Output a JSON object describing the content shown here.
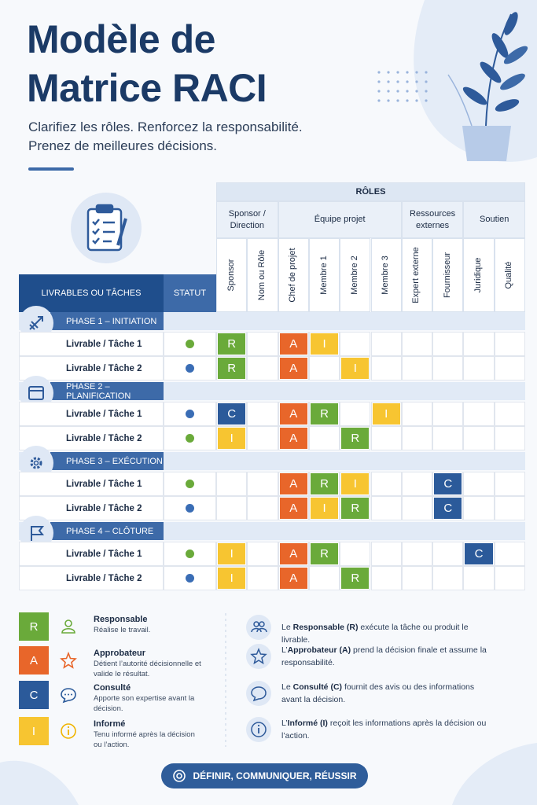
{
  "header": {
    "title_lines": [
      "Modèle de",
      "Matrice RACI"
    ],
    "subtitle_lines": [
      "Clarifiez les rôles. Renforcez la responsabilité.",
      "Prenez de meilleures décisions."
    ]
  },
  "matrix": {
    "roles_title": "RÔLES",
    "task_header": "LIVRABLES OU TÂCHES",
    "status_header": "STATUT",
    "groups": [
      {
        "label": "Sponsor / Direction",
        "roles": [
          "Sponsor",
          "Nom ou Rôle"
        ]
      },
      {
        "label": "Équipe projet",
        "roles": [
          "Chef de projet",
          "Membre 1",
          "Membre 2",
          "Membre 3"
        ]
      },
      {
        "label": "Ressources externes",
        "roles": [
          "Expert externe",
          "Fournisseur"
        ]
      },
      {
        "label": "Soutien",
        "roles": [
          "Juridique",
          "Qualité"
        ]
      }
    ],
    "phases": [
      {
        "label": "PHASE 1 – INITIATION",
        "tasks": [
          {
            "label": "Livrable / Tâche 1",
            "status_color": "#6aaa3a",
            "cells": [
              "R",
              null,
              "A",
              "I",
              null,
              null,
              null,
              null,
              null,
              null
            ]
          },
          {
            "label": "Livrable / Tâche 2",
            "status_color": "#3a6db5",
            "cells": [
              "R",
              null,
              "A",
              null,
              "I",
              null,
              null,
              null,
              null,
              null
            ]
          }
        ]
      },
      {
        "label": "PHASE 2 – PLANIFICATION",
        "tasks": [
          {
            "label": "Livrable / Tâche 1",
            "status_color": "#3a6db5",
            "cells": [
              "C",
              null,
              "A",
              "R",
              null,
              "I",
              null,
              null,
              null,
              null
            ]
          },
          {
            "label": "Livrable / Tâche 2",
            "status_color": "#6aaa3a",
            "cells": [
              "I",
              null,
              "A",
              null,
              "R",
              null,
              null,
              null,
              null,
              null
            ]
          }
        ]
      },
      {
        "label": "PHASE 3 – EXÉCUTION",
        "tasks": [
          {
            "label": "Livrable / Tâche 1",
            "status_color": "#6aaa3a",
            "cells": [
              null,
              null,
              "A",
              "R",
              "I",
              null,
              null,
              "C",
              null,
              null
            ]
          },
          {
            "label": "Livrable / Tâche 2",
            "status_color": "#3a6db5",
            "cells": [
              null,
              null,
              "A",
              "I",
              "R",
              null,
              null,
              "C",
              null,
              null
            ]
          }
        ]
      },
      {
        "label": "PHASE 4 – CLÔTURE",
        "tasks": [
          {
            "label": "Livrable / Tâche 1",
            "status_color": "#6aaa3a",
            "cells": [
              "I",
              null,
              "A",
              "R",
              null,
              null,
              null,
              null,
              "C",
              null
            ]
          },
          {
            "label": "Livrable / Tâche 2",
            "status_color": "#3a6db5",
            "cells": [
              "I",
              null,
              "A",
              null,
              "R",
              null,
              null,
              null,
              null,
              null
            ]
          }
        ]
      }
    ]
  },
  "legend": [
    {
      "letter": "R",
      "name": "Responsable",
      "description": "Réalise le travail."
    },
    {
      "letter": "A",
      "name": "Approbateur",
      "description": "Détient l’autorité décisionnelle et valide le résultat."
    },
    {
      "letter": "C",
      "name": "Consulté",
      "description": "Apporte son expertise avant la décision."
    },
    {
      "letter": "I",
      "name": "Informé",
      "description": "Tenu informé après la décision ou l’action."
    }
  ],
  "notes": [
    {
      "before": "Le ",
      "bold": "Responsable (R)",
      "after": " exécute la tâche ou produit le livrable."
    },
    {
      "before": "L’",
      "bold": "Approbateur (A)",
      "after": " prend la décision finale et assume la responsabilité."
    },
    {
      "before": "Le ",
      "bold": "Consulté (C)",
      "after": " fournit des avis ou des informations avant la décision."
    },
    {
      "before": "L’",
      "bold": "Informé (I)",
      "after": " reçoit les informations après la décision ou l’action."
    }
  ],
  "footer": {
    "slogan": "DÉFINIR, COMMUNIQUER, RÉUSSIR"
  }
}
